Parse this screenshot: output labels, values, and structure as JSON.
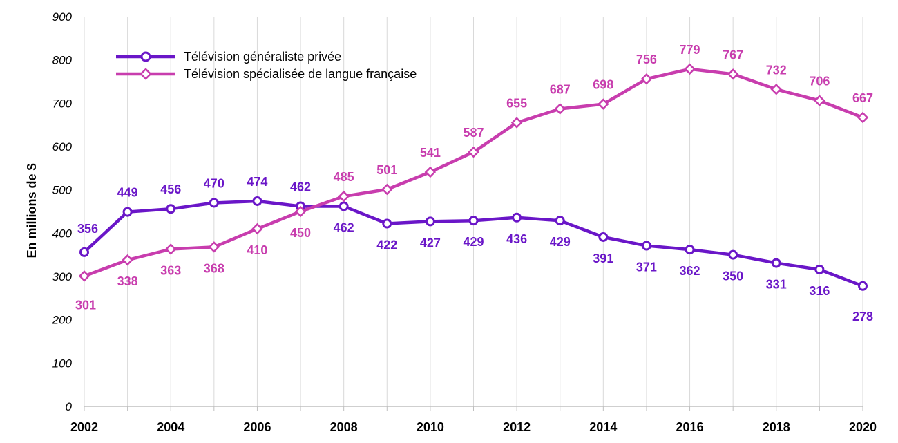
{
  "chart_data": {
    "type": "line",
    "title": "",
    "xlabel": "",
    "ylabel": "En millions de $",
    "ylim": [
      0,
      900
    ],
    "yticks": [
      "0",
      "100",
      "200",
      "300",
      "400",
      "500",
      "600",
      "700",
      "800",
      "900"
    ],
    "xticks": [
      "2002",
      "2004",
      "2006",
      "2008",
      "2010",
      "2012",
      "2014",
      "2016",
      "2018",
      "2020"
    ],
    "grid": true,
    "legend_position": "top-left",
    "x": [
      2002,
      2003,
      2004,
      2005,
      2006,
      2007,
      2008,
      2009,
      2010,
      2011,
      2012,
      2013,
      2014,
      2015,
      2016,
      2017,
      2018,
      2019,
      2020
    ],
    "series": [
      {
        "name": "Télévision généraliste privée",
        "color": "#6A16C8",
        "marker": "circle",
        "values": [
          356,
          449,
          456,
          470,
          474,
          462,
          462,
          422,
          427,
          429,
          436,
          429,
          391,
          371,
          362,
          350,
          331,
          316,
          278
        ]
      },
      {
        "name": "Télévision spécialisée de langue française",
        "color": "#C83DAE",
        "marker": "diamond",
        "values": [
          301,
          338,
          363,
          368,
          410,
          450,
          485,
          501,
          541,
          587,
          655,
          687,
          698,
          756,
          779,
          767,
          732,
          706,
          667
        ]
      }
    ]
  }
}
